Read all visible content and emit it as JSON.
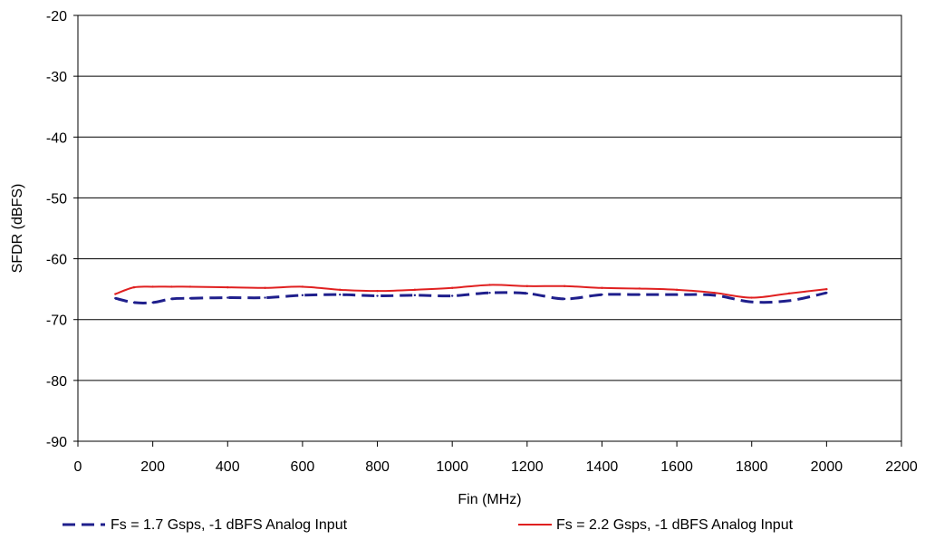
{
  "chart_data": {
    "type": "line",
    "title": "",
    "xlabel": "Fin (MHz)",
    "ylabel": "SFDR (dBFS)",
    "xlim": [
      0,
      2200
    ],
    "ylim": [
      -90,
      -20
    ],
    "xticks": [
      0,
      200,
      400,
      600,
      800,
      1000,
      1200,
      1400,
      1600,
      1800,
      2000,
      2200
    ],
    "yticks": [
      -90,
      -80,
      -70,
      -60,
      -50,
      -40,
      -30,
      -20
    ],
    "xtick_labels": [
      "0",
      "200",
      "400",
      "600",
      "800",
      "1000",
      "1200",
      "1400",
      "1600",
      "1800",
      "2000",
      "2200"
    ],
    "ytick_labels": [
      "-90",
      "-80",
      "-70",
      "-60",
      "-50",
      "-40",
      "-30",
      "-20"
    ],
    "grid": "horizontal",
    "legend_position": "bottom",
    "series": [
      {
        "name": "Fs = 1.7 Gsps, -1 dBFS Analog Input",
        "color": "#1f1f8c",
        "style": "dashed",
        "x": [
          100,
          150,
          200,
          250,
          300,
          400,
          500,
          600,
          700,
          800,
          900,
          1000,
          1100,
          1200,
          1300,
          1400,
          1500,
          1600,
          1700,
          1800,
          1900,
          2000
        ],
        "y": [
          -66.5,
          -67.2,
          -67.2,
          -66.6,
          -66.5,
          -66.4,
          -66.4,
          -66.0,
          -65.9,
          -66.1,
          -66.0,
          -66.1,
          -65.6,
          -65.7,
          -66.6,
          -65.9,
          -65.9,
          -65.9,
          -66.0,
          -67.1,
          -66.9,
          -65.6
        ]
      },
      {
        "name": "Fs = 2.2 Gsps, -1 dBFS Analog Input",
        "color": "#e02020",
        "style": "solid",
        "x": [
          100,
          150,
          200,
          250,
          300,
          400,
          500,
          600,
          700,
          800,
          900,
          1000,
          1100,
          1200,
          1300,
          1400,
          1500,
          1600,
          1700,
          1800,
          1900,
          2000
        ],
        "y": [
          -65.8,
          -64.7,
          -64.6,
          -64.6,
          -64.6,
          -64.7,
          -64.8,
          -64.6,
          -65.1,
          -65.3,
          -65.1,
          -64.8,
          -64.3,
          -64.5,
          -64.5,
          -64.8,
          -64.9,
          -65.1,
          -65.6,
          -66.4,
          -65.7,
          -65.0
        ]
      }
    ]
  }
}
